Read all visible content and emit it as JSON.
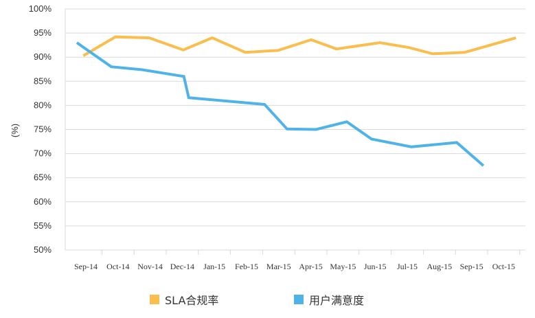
{
  "chart_data": {
    "type": "line",
    "title": "",
    "xlabel": "",
    "ylabel": "(%)",
    "ylim": [
      50,
      100
    ],
    "yticks": [
      "50%",
      "55%",
      "60%",
      "65%",
      "70%",
      "75%",
      "80%",
      "85%",
      "90%",
      "95%",
      "100%"
    ],
    "categories": [
      "Sep-14",
      "Oct-14",
      "Nov-14",
      "Dec-14",
      "Jan-15",
      "Feb-15",
      "Mar-15",
      "Apr-15",
      "May-15",
      "Jun-15",
      "Jul-15",
      "Aug-15",
      "Sep-15",
      "Oct-15"
    ],
    "grid": true,
    "legend_position": "bottom",
    "series": [
      {
        "name": "SLA合规率",
        "color": "#F9BE4E",
        "points": [
          [
            -0.08,
            90.3
          ],
          [
            0.92,
            94.2
          ],
          [
            1.97,
            94.0
          ],
          [
            3.03,
            91.5
          ],
          [
            3.93,
            94.0
          ],
          [
            4.96,
            91.0
          ],
          [
            5.98,
            91.4
          ],
          [
            7.01,
            93.6
          ],
          [
            7.8,
            91.7
          ],
          [
            9.15,
            93.0
          ],
          [
            10.05,
            92.0
          ],
          [
            10.79,
            90.7
          ],
          [
            11.79,
            91.0
          ],
          [
            13.38,
            94.0
          ]
        ]
      },
      {
        "name": "用户满意度",
        "color": "#4FB3E8",
        "points": [
          [
            -0.28,
            93.0
          ],
          [
            0.79,
            88.0
          ],
          [
            1.75,
            87.4
          ],
          [
            3.05,
            86.0
          ],
          [
            3.2,
            81.6
          ],
          [
            5.56,
            80.2
          ],
          [
            6.26,
            75.1
          ],
          [
            7.16,
            75.0
          ],
          [
            8.12,
            76.6
          ],
          [
            8.89,
            73.0
          ],
          [
            10.13,
            71.4
          ],
          [
            11.54,
            72.3
          ],
          [
            12.37,
            67.5
          ]
        ]
      }
    ]
  }
}
